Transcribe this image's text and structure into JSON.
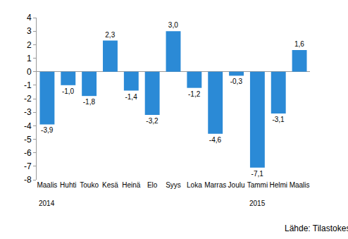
{
  "chart_data": {
    "type": "bar",
    "categories": [
      "Maalis",
      "Huhti",
      "Touko",
      "Kesä",
      "Heinä",
      "Elo",
      "Syys",
      "Loka",
      "Marras",
      "Joulu",
      "Tammi",
      "Helmi",
      "Maalis"
    ],
    "values": [
      -3.9,
      -1.0,
      -1.8,
      2.3,
      -1.4,
      -3.2,
      3.0,
      -1.2,
      -4.6,
      -0.3,
      -7.1,
      -3.1,
      1.6
    ],
    "value_labels": [
      "-3,9",
      "-1,0",
      "-1,8",
      "2,3",
      "-1,4",
      "-3,2",
      "3,0",
      "-1,2",
      "-4,6",
      "-0,3",
      "-7,1",
      "-3,1",
      "1,6"
    ],
    "data_labels": true,
    "color": "#2b8ad6",
    "ylim": [
      -8,
      4
    ],
    "yticks": [
      -8,
      -7,
      -6,
      -5,
      -4,
      -3,
      -2,
      -1,
      0,
      1,
      2,
      3,
      4
    ],
    "grid": false,
    "annotations": [
      {
        "text": "2014",
        "x": 0
      },
      {
        "text": "2015",
        "x": 10
      }
    ],
    "source": "Lähde: Tilastokeskus"
  }
}
